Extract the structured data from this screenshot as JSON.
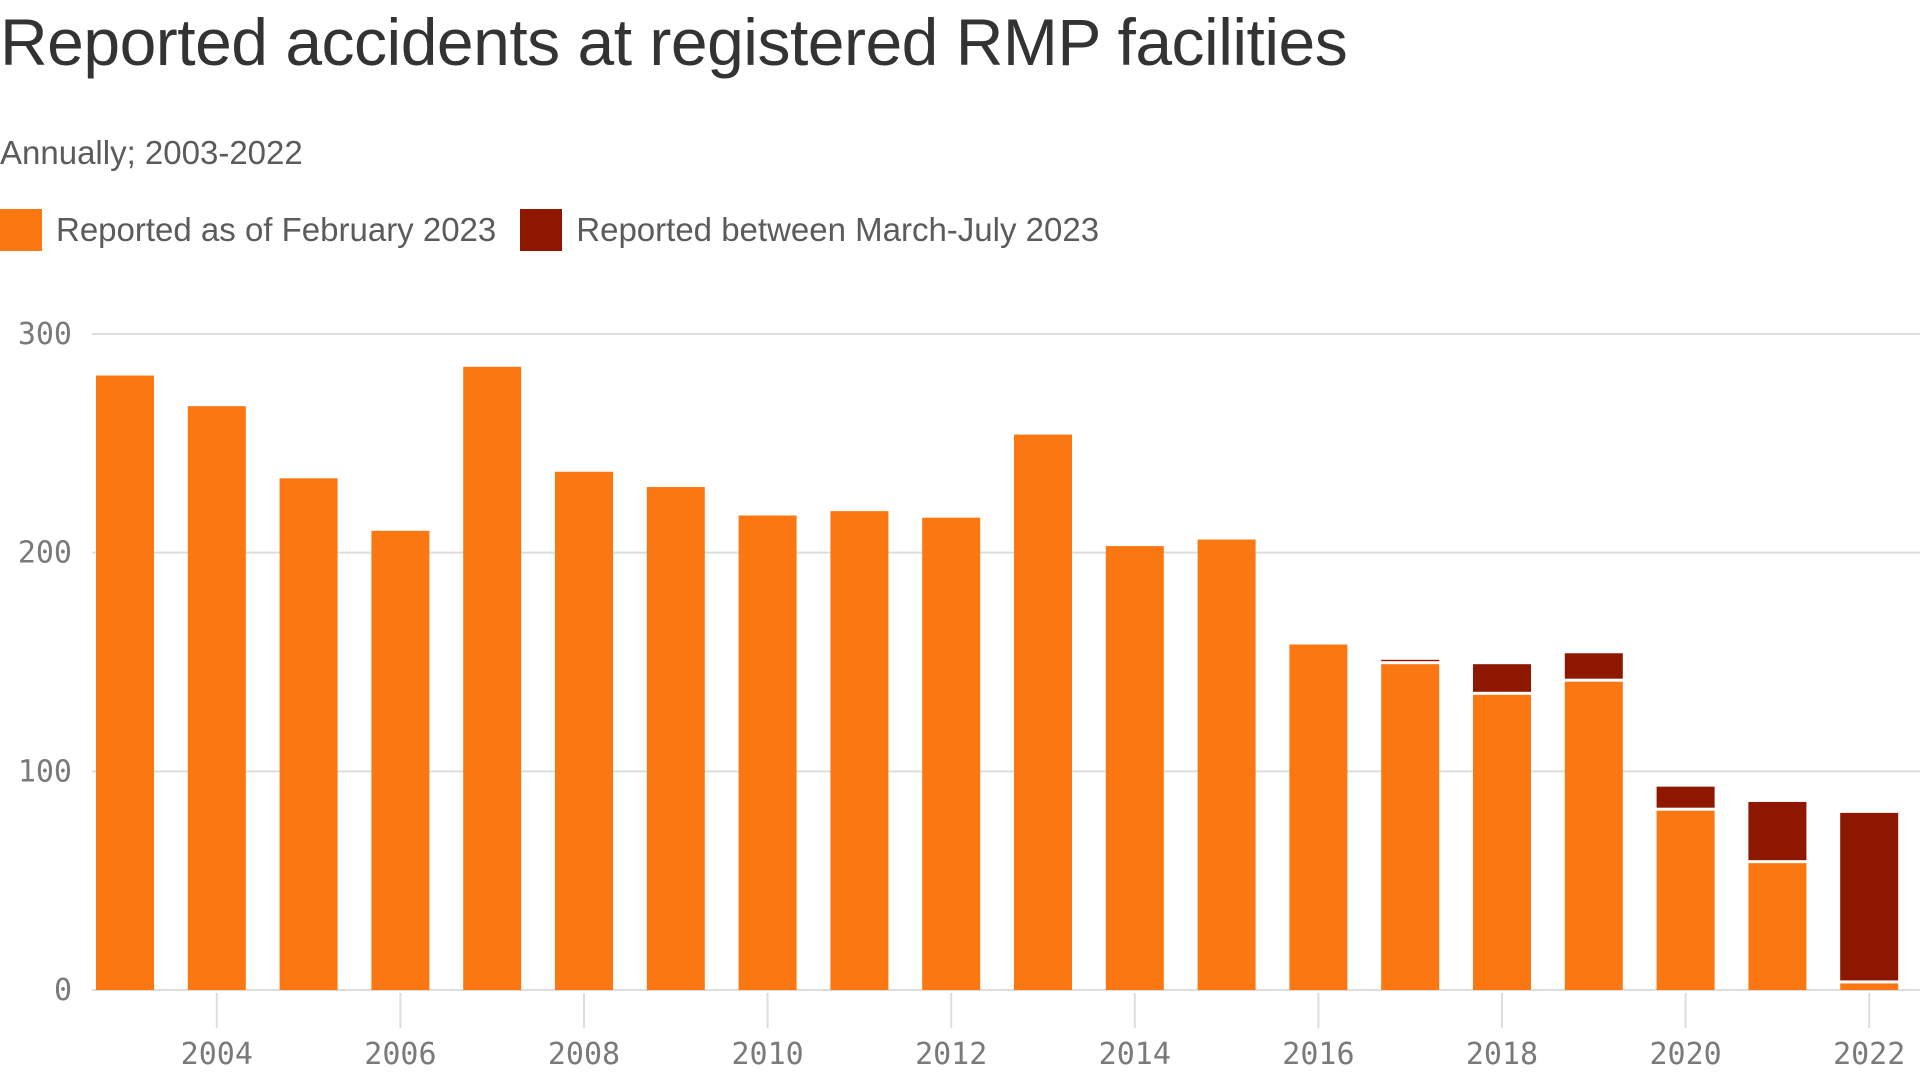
{
  "chart_data": {
    "type": "bar",
    "stacked": true,
    "title": "Reported accidents at registered RMP facilities",
    "subtitle": "Annually; 2003-2022",
    "x": [
      2003,
      2004,
      2005,
      2006,
      2007,
      2008,
      2009,
      2010,
      2011,
      2012,
      2013,
      2014,
      2015,
      2016,
      2017,
      2018,
      2019,
      2020,
      2021,
      2022
    ],
    "series": [
      {
        "name": "Reported as of February 2023",
        "color": "#fb7712",
        "values": [
          281,
          267,
          234,
          210,
          285,
          237,
          230,
          217,
          219,
          216,
          254,
          203,
          206,
          158,
          149,
          135,
          141,
          82,
          58,
          3
        ]
      },
      {
        "name": "Reported between March-July 2023",
        "color": "#8e1700",
        "values": [
          0,
          0,
          0,
          0,
          0,
          0,
          0,
          0,
          0,
          0,
          0,
          0,
          0,
          0,
          2,
          14,
          13,
          11,
          28,
          78
        ]
      }
    ],
    "ylim": [
      0,
      300
    ],
    "yticks": [
      0,
      100,
      200,
      300
    ],
    "xticks": [
      2004,
      2006,
      2008,
      2010,
      2012,
      2014,
      2016,
      2018,
      2020,
      2022
    ],
    "grid": true,
    "legend": "top-left",
    "xlabel": "",
    "ylabel": ""
  }
}
